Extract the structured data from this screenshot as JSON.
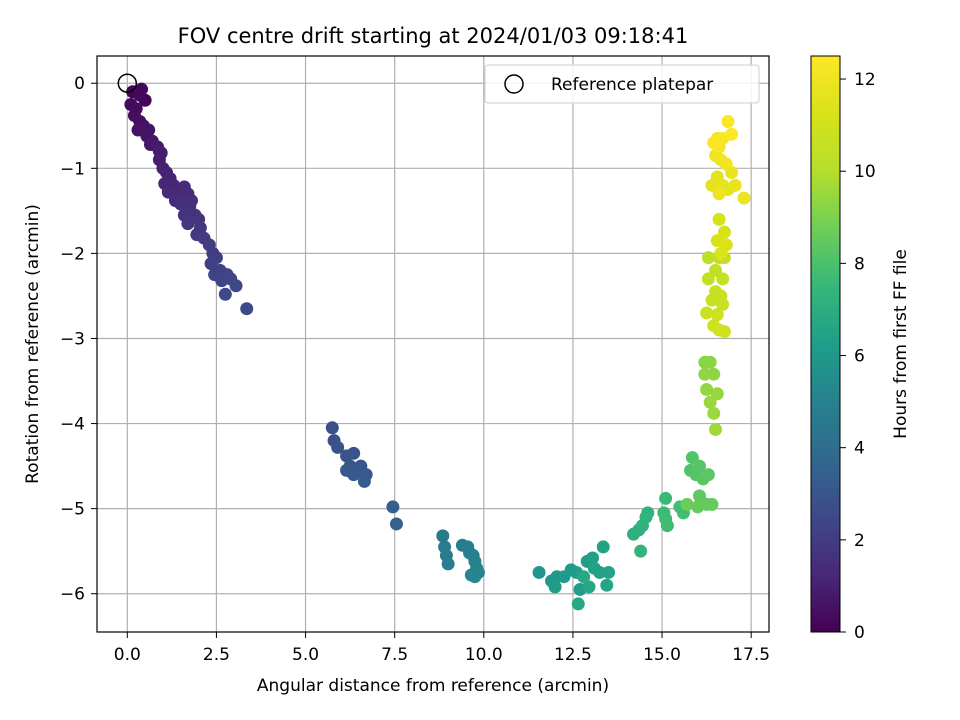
{
  "chart_data": {
    "type": "scatter",
    "title": "FOV centre drift starting at 2024/01/03 09:18:41",
    "xlabel": "Angular distance from reference (arcmin)",
    "ylabel": "Rotation from reference (arcmin)",
    "xlim": [
      -0.85,
      18.0
    ],
    "ylim": [
      -6.45,
      0.32
    ],
    "xticks": [
      0.0,
      2.5,
      5.0,
      7.5,
      10.0,
      12.5,
      15.0,
      17.5
    ],
    "xtick_labels": [
      "0.0",
      "2.5",
      "5.0",
      "7.5",
      "10.0",
      "12.5",
      "15.0",
      "17.5"
    ],
    "yticks": [
      0,
      -1,
      -2,
      -3,
      -4,
      -5,
      -6
    ],
    "ytick_labels": [
      "0",
      "−1",
      "−2",
      "−3",
      "−4",
      "−5",
      "−6"
    ],
    "grid": true,
    "legend": {
      "position": "top-right",
      "entries": [
        {
          "label": "Reference platepar",
          "marker": "open-circle"
        }
      ]
    },
    "reference_point": {
      "x": 0.0,
      "y": 0.0
    },
    "colorbar": {
      "label": "Hours from first FF file",
      "colormap": "viridis",
      "range": [
        0,
        12.5
      ],
      "ticks": [
        0,
        2,
        4,
        6,
        8,
        10,
        12
      ],
      "tick_labels": [
        "0",
        "2",
        "4",
        "6",
        "8",
        "10",
        "12"
      ]
    },
    "series": [
      {
        "points": [
          [
            0.4,
            -0.07,
            0.2
          ],
          [
            0.35,
            -0.14,
            0.25
          ],
          [
            0.1,
            -0.25,
            0.3
          ],
          [
            0.25,
            -0.3,
            0.35
          ],
          [
            0.2,
            -0.38,
            0.4
          ],
          [
            0.35,
            -0.45,
            0.45
          ],
          [
            0.45,
            -0.5,
            0.5
          ],
          [
            0.3,
            -0.55,
            0.55
          ],
          [
            0.6,
            -0.55,
            0.6
          ],
          [
            0.55,
            -0.62,
            0.65
          ],
          [
            0.7,
            -0.68,
            0.7
          ],
          [
            0.65,
            -0.72,
            0.75
          ],
          [
            0.85,
            -0.75,
            0.8
          ],
          [
            0.95,
            -0.82,
            0.85
          ],
          [
            0.9,
            -0.9,
            0.9
          ],
          [
            1.0,
            -1.0,
            1.0
          ],
          [
            1.1,
            -1.05,
            1.05
          ],
          [
            1.2,
            -1.12,
            1.1
          ],
          [
            1.05,
            -1.18,
            1.15
          ],
          [
            1.3,
            -1.2,
            1.2
          ],
          [
            1.15,
            -1.28,
            1.25
          ],
          [
            1.45,
            -1.3,
            1.3
          ],
          [
            1.6,
            -1.22,
            1.35
          ],
          [
            1.7,
            -1.3,
            1.4
          ],
          [
            1.35,
            -1.38,
            1.45
          ],
          [
            1.5,
            -1.42,
            1.5
          ],
          [
            1.8,
            -1.38,
            1.55
          ],
          [
            1.75,
            -1.45,
            1.6
          ],
          [
            1.6,
            -1.55,
            1.65
          ],
          [
            1.9,
            -1.55,
            1.7
          ],
          [
            2.0,
            -1.6,
            1.75
          ],
          [
            1.7,
            -1.65,
            1.8
          ],
          [
            2.05,
            -1.7,
            1.85
          ],
          [
            1.95,
            -1.78,
            1.9
          ],
          [
            2.15,
            -1.82,
            1.95
          ],
          [
            2.3,
            -1.9,
            2.0
          ],
          [
            2.4,
            -2.0,
            2.05
          ],
          [
            2.5,
            -2.05,
            2.1
          ],
          [
            2.35,
            -2.12,
            2.15
          ],
          [
            2.6,
            -2.2,
            2.2
          ],
          [
            2.45,
            -2.25,
            2.25
          ],
          [
            2.8,
            -2.25,
            2.3
          ],
          [
            2.9,
            -2.3,
            2.35
          ],
          [
            2.65,
            -2.32,
            2.4
          ],
          [
            3.05,
            -2.38,
            2.45
          ],
          [
            2.75,
            -2.48,
            2.5
          ],
          [
            3.35,
            -2.65,
            2.55
          ],
          [
            0.5,
            -0.2,
            0.15
          ],
          [
            0.15,
            -0.1,
            0.1
          ],
          [
            0.9,
            -0.8,
            0.87
          ],
          [
            5.75,
            -4.05,
            2.75
          ],
          [
            5.8,
            -4.2,
            2.8
          ],
          [
            5.9,
            -4.28,
            2.85
          ],
          [
            6.15,
            -4.38,
            2.9
          ],
          [
            6.35,
            -4.35,
            2.95
          ],
          [
            6.25,
            -4.5,
            3.0
          ],
          [
            6.55,
            -4.5,
            3.05
          ],
          [
            6.15,
            -4.55,
            3.1
          ],
          [
            6.35,
            -4.6,
            3.15
          ],
          [
            6.7,
            -4.6,
            3.2
          ],
          [
            6.65,
            -4.68,
            3.25
          ],
          [
            7.45,
            -4.98,
            3.4
          ],
          [
            7.55,
            -5.18,
            3.45
          ],
          [
            8.85,
            -5.32,
            4.6
          ],
          [
            8.9,
            -5.45,
            4.65
          ],
          [
            8.95,
            -5.55,
            4.7
          ],
          [
            9.0,
            -5.65,
            4.75
          ],
          [
            9.4,
            -5.43,
            4.8
          ],
          [
            9.55,
            -5.45,
            4.85
          ],
          [
            9.6,
            -5.52,
            4.9
          ],
          [
            9.7,
            -5.55,
            4.95
          ],
          [
            9.75,
            -5.62,
            5.0
          ],
          [
            9.8,
            -5.7,
            5.05
          ],
          [
            9.85,
            -5.75,
            5.1
          ],
          [
            9.65,
            -5.78,
            5.15
          ],
          [
            9.75,
            -5.8,
            5.2
          ],
          [
            11.55,
            -5.75,
            5.9
          ],
          [
            11.9,
            -5.85,
            5.95
          ],
          [
            12.05,
            -5.8,
            6.0
          ],
          [
            12.25,
            -5.8,
            6.05
          ],
          [
            12.45,
            -5.72,
            6.1
          ],
          [
            12.0,
            -5.92,
            6.15
          ],
          [
            12.6,
            -5.75,
            6.2
          ],
          [
            12.7,
            -5.95,
            6.25
          ],
          [
            12.9,
            -5.62,
            6.3
          ],
          [
            13.05,
            -5.58,
            6.35
          ],
          [
            13.1,
            -5.7,
            6.4
          ],
          [
            13.25,
            -5.75,
            6.45
          ],
          [
            13.35,
            -5.45,
            6.5
          ],
          [
            13.5,
            -5.75,
            6.55
          ],
          [
            13.45,
            -5.9,
            6.6
          ],
          [
            12.95,
            -5.92,
            6.65
          ],
          [
            12.65,
            -6.12,
            6.7
          ],
          [
            12.8,
            -5.8,
            6.75
          ],
          [
            14.2,
            -5.3,
            7.1
          ],
          [
            14.35,
            -5.25,
            7.15
          ],
          [
            14.45,
            -5.2,
            7.2
          ],
          [
            14.6,
            -5.05,
            7.25
          ],
          [
            14.55,
            -5.1,
            7.3
          ],
          [
            14.4,
            -5.5,
            7.35
          ],
          [
            15.1,
            -4.88,
            7.6
          ],
          [
            15.05,
            -5.05,
            7.65
          ],
          [
            15.1,
            -5.12,
            7.7
          ],
          [
            15.15,
            -5.2,
            7.75
          ],
          [
            15.5,
            -4.98,
            7.8
          ],
          [
            15.6,
            -5.05,
            7.85
          ],
          [
            15.8,
            -4.55,
            8.1
          ],
          [
            15.85,
            -4.4,
            8.15
          ],
          [
            15.95,
            -4.6,
            8.2
          ],
          [
            16.05,
            -4.5,
            8.25
          ],
          [
            16.15,
            -4.65,
            8.3
          ],
          [
            16.3,
            -4.6,
            8.35
          ],
          [
            16.05,
            -4.85,
            8.4
          ],
          [
            16.1,
            -4.92,
            8.45
          ],
          [
            16.25,
            -4.95,
            8.5
          ],
          [
            16.4,
            -4.95,
            8.55
          ],
          [
            16.0,
            -4.98,
            8.6
          ],
          [
            15.7,
            -4.95,
            8.65
          ],
          [
            16.2,
            -3.28,
            9.2
          ],
          [
            16.35,
            -3.28,
            9.25
          ],
          [
            16.45,
            -3.42,
            9.3
          ],
          [
            16.2,
            -3.42,
            9.35
          ],
          [
            16.25,
            -3.6,
            9.4
          ],
          [
            16.55,
            -3.65,
            9.45
          ],
          [
            16.35,
            -3.75,
            9.5
          ],
          [
            16.45,
            -3.88,
            9.55
          ],
          [
            16.5,
            -4.07,
            9.6
          ],
          [
            16.3,
            -2.05,
            10.3
          ],
          [
            16.6,
            -2.05,
            10.35
          ],
          [
            16.75,
            -2.05,
            10.4
          ],
          [
            16.5,
            -2.2,
            10.45
          ],
          [
            16.3,
            -2.3,
            10.5
          ],
          [
            16.7,
            -2.3,
            10.55
          ],
          [
            16.5,
            -2.45,
            10.6
          ],
          [
            16.65,
            -2.5,
            10.65
          ],
          [
            16.4,
            -2.55,
            10.7
          ],
          [
            16.7,
            -2.6,
            10.75
          ],
          [
            16.25,
            -2.7,
            10.8
          ],
          [
            16.55,
            -2.72,
            10.85
          ],
          [
            16.45,
            -2.85,
            10.9
          ],
          [
            16.6,
            -2.9,
            10.95
          ],
          [
            16.75,
            -2.92,
            11.0
          ],
          [
            16.6,
            -1.6,
            11.2
          ],
          [
            16.75,
            -1.75,
            11.25
          ],
          [
            16.55,
            -1.85,
            11.3
          ],
          [
            16.8,
            -1.9,
            11.35
          ],
          [
            16.65,
            -2.0,
            11.4
          ],
          [
            16.4,
            -1.2,
            11.6
          ],
          [
            16.55,
            -1.1,
            11.65
          ],
          [
            16.7,
            -1.2,
            11.7
          ],
          [
            16.85,
            -1.25,
            11.75
          ],
          [
            16.95,
            -1.05,
            11.8
          ],
          [
            17.05,
            -1.2,
            11.85
          ],
          [
            17.3,
            -1.35,
            11.9
          ],
          [
            16.6,
            -1.3,
            11.95
          ],
          [
            16.5,
            -0.85,
            12.0
          ],
          [
            16.65,
            -0.9,
            12.05
          ],
          [
            16.8,
            -0.95,
            12.1
          ],
          [
            16.55,
            -0.65,
            12.2
          ],
          [
            16.7,
            -0.65,
            12.25
          ],
          [
            16.6,
            -0.75,
            12.3
          ],
          [
            16.85,
            -0.45,
            12.4
          ],
          [
            16.95,
            -0.6,
            12.45
          ],
          [
            16.45,
            -0.7,
            12.35
          ]
        ]
      }
    ]
  }
}
